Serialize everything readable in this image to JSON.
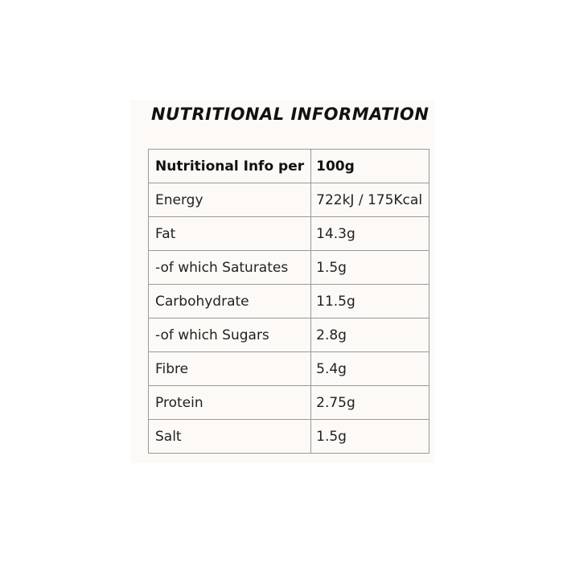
{
  "title": "NUTRITIONAL INFORMATION",
  "table": {
    "header": [
      "Nutritional Info per",
      "100g"
    ],
    "rows": [
      [
        "Energy",
        "722kJ / 175Kcal"
      ],
      [
        "Fat",
        "14.3g"
      ],
      [
        "-of which Saturates",
        "1.5g"
      ],
      [
        "Carbohydrate",
        "11.5g"
      ],
      [
        "-of which Sugars",
        "2.8g"
      ],
      [
        "Fibre",
        "5.4g"
      ],
      [
        "Protein",
        "2.75g"
      ],
      [
        "Salt",
        "1.5g"
      ]
    ]
  }
}
